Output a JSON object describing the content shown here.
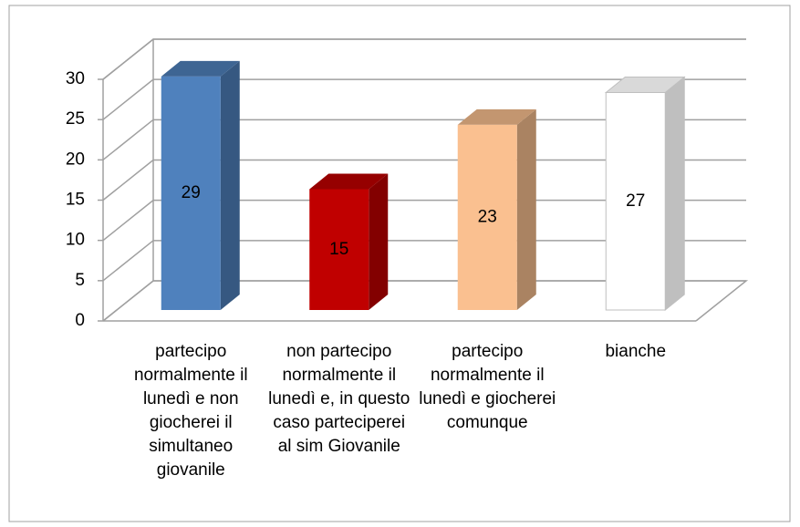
{
  "chart_data": {
    "type": "bar",
    "categories": [
      "partecipo normalmente il lunedì e non giocherei il simultaneo giovanile",
      "non partecipo normalmente il lunedì e, in questo caso parteciperei al sim Giovanile",
      "partecipo normalmente il lunedì e giocherei comunque",
      "bianche"
    ],
    "values": [
      29,
      15,
      23,
      27
    ],
    "colors": [
      "#4f81bd",
      "#c00000",
      "#fac090",
      "#ffffff"
    ],
    "ylim": [
      0,
      30
    ],
    "yticks": [
      0,
      5,
      10,
      15,
      20,
      25,
      30
    ],
    "grid": true
  }
}
